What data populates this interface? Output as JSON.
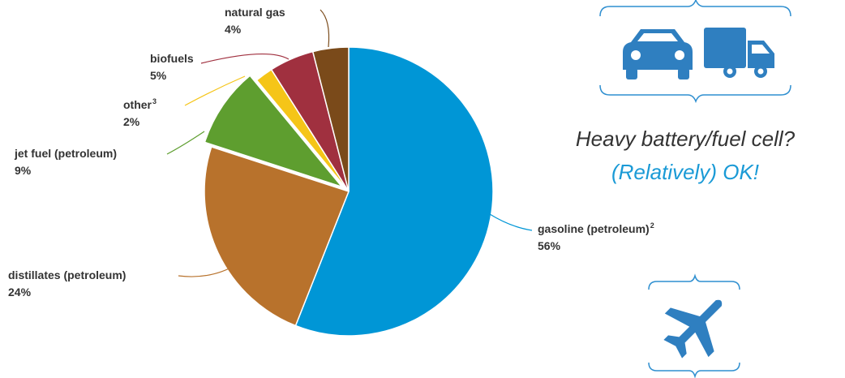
{
  "chart_data": {
    "type": "pie",
    "categories": [
      "gasoline (petroleum)",
      "distillates (petroleum)",
      "jet fuel (petroleum)",
      "other",
      "biofuels",
      "natural gas"
    ],
    "footnotes": [
      "2",
      null,
      null,
      "3",
      null,
      null
    ],
    "values": [
      56,
      24,
      9,
      2,
      5,
      4
    ],
    "value_labels": [
      "56%",
      "24%",
      "9%",
      "2%",
      "5%",
      "4%"
    ],
    "colors": [
      "#0096d6",
      "#b8722c",
      "#5e9e2f",
      "#f5c518",
      "#a0303f",
      "#7a4a1a"
    ],
    "explode": [
      false,
      false,
      true,
      false,
      false,
      false
    ],
    "annotations": [
      "Heavy battery/fuel cell?",
      "(Relatively) OK!"
    ]
  }
}
